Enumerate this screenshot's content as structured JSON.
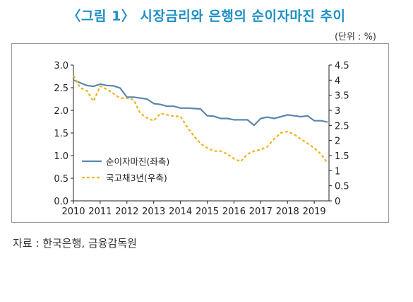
{
  "title": "〈그림 1〉 시장금리와 은행의 순이자마진 추이",
  "unit": "(단위 : %)",
  "source": "자료 : 한국은행, 금융감독원",
  "colors": {
    "title": "#1d8fc5",
    "nim": "#5b86b0",
    "bond": "#f0b323",
    "frame": "#9a9a9a"
  },
  "chart_data": {
    "type": "line",
    "title": "",
    "xlabel": "",
    "ylabel_left": "",
    "ylabel_right": "",
    "x_ticks": [
      "2010",
      "2011",
      "2012",
      "2013",
      "2014",
      "2015",
      "2016",
      "2017",
      "2018",
      "2019"
    ],
    "y_left": {
      "range": [
        0,
        3.0
      ],
      "ticks": [
        "0.0",
        "0.5",
        "1.0",
        "1.5",
        "2.0",
        "2.5",
        "3.0"
      ]
    },
    "y_right": {
      "range": [
        0,
        4.5
      ],
      "ticks": [
        "0",
        "0.5",
        "1",
        "1.5",
        "2",
        "2.5",
        "3",
        "3.5",
        "4",
        "4.5"
      ]
    },
    "legend_position": "center-left",
    "grid": false,
    "series": [
      {
        "name": "순이자마진(좌축)",
        "axis": "left",
        "style": "solid",
        "x": [
          2010.0,
          2010.25,
          2010.5,
          2010.75,
          2011.0,
          2011.25,
          2011.5,
          2011.75,
          2012.0,
          2012.25,
          2012.5,
          2012.75,
          2013.0,
          2013.25,
          2013.5,
          2013.75,
          2014.0,
          2014.25,
          2014.5,
          2014.75,
          2015.0,
          2015.25,
          2015.5,
          2015.75,
          2016.0,
          2016.25,
          2016.5,
          2016.75,
          2017.0,
          2017.25,
          2017.5,
          2017.75,
          2018.0,
          2018.25,
          2018.5,
          2018.75,
          2019.0,
          2019.25,
          2019.5
        ],
        "y": [
          2.67,
          2.61,
          2.55,
          2.53,
          2.58,
          2.55,
          2.54,
          2.49,
          2.29,
          2.29,
          2.27,
          2.25,
          2.15,
          2.13,
          2.09,
          2.09,
          2.05,
          2.05,
          2.04,
          2.03,
          1.88,
          1.87,
          1.82,
          1.82,
          1.79,
          1.79,
          1.79,
          1.67,
          1.82,
          1.85,
          1.82,
          1.86,
          1.9,
          1.88,
          1.86,
          1.88,
          1.77,
          1.77,
          1.74
        ]
      },
      {
        "name": "국고채3년(우축)",
        "axis": "right",
        "style": "dashed",
        "x": [
          2010.0,
          2010.25,
          2010.5,
          2010.75,
          2011.0,
          2011.25,
          2011.5,
          2011.75,
          2012.0,
          2012.25,
          2012.5,
          2012.75,
          2013.0,
          2013.25,
          2013.5,
          2013.75,
          2014.0,
          2014.25,
          2014.5,
          2014.75,
          2015.0,
          2015.25,
          2015.5,
          2015.75,
          2016.0,
          2016.25,
          2016.5,
          2016.75,
          2017.0,
          2017.25,
          2017.5,
          2017.75,
          2018.0,
          2018.25,
          2018.5,
          2018.75,
          2019.0,
          2019.25,
          2019.5
        ],
        "y": [
          4.15,
          3.75,
          3.65,
          3.3,
          3.8,
          3.7,
          3.55,
          3.4,
          3.4,
          3.35,
          2.9,
          2.75,
          2.65,
          2.9,
          2.85,
          2.8,
          2.8,
          2.45,
          2.15,
          1.9,
          1.75,
          1.65,
          1.65,
          1.55,
          1.4,
          1.3,
          1.55,
          1.65,
          1.7,
          1.8,
          2.05,
          2.25,
          2.3,
          2.2,
          2.05,
          1.9,
          1.75,
          1.55,
          1.25
        ]
      }
    ]
  }
}
